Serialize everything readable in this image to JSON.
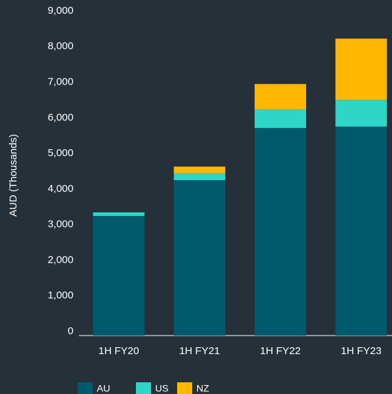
{
  "chart_data": {
    "type": "stacked_bar",
    "y_label": "AUD (Thousands)",
    "categories": [
      "1H FY20",
      "1H FY21",
      "1H FY22",
      "1H FY23"
    ],
    "series": [
      {
        "name": "AU",
        "color": "#005a6e",
        "values": [
          3360,
          4365,
          5830,
          5870
        ]
      },
      {
        "name": "US",
        "color": "#2ed6c8",
        "values": [
          100,
          190,
          520,
          750
        ]
      },
      {
        "name": "NZ",
        "color": "#ffb700",
        "values": [
          0,
          190,
          715,
          1720
        ]
      }
    ],
    "ylim": [
      0,
      9000
    ],
    "yticks": [
      0,
      {
        "value": 1000,
        "label": "1,000"
      },
      {
        "value": 2000,
        "label": "2,000"
      },
      {
        "value": 3000,
        "label": "3,000"
      },
      {
        "value": 4000,
        "label": "4,000"
      },
      {
        "value": 5000,
        "label": "5,000"
      },
      {
        "value": 6000,
        "label": "6,000"
      },
      {
        "value": 7000,
        "label": "7,000"
      },
      {
        "value": 8000,
        "label": "8,000"
      },
      {
        "value": 9000,
        "label": "9,000"
      }
    ],
    "grid": false,
    "legend": "bottom-left"
  }
}
